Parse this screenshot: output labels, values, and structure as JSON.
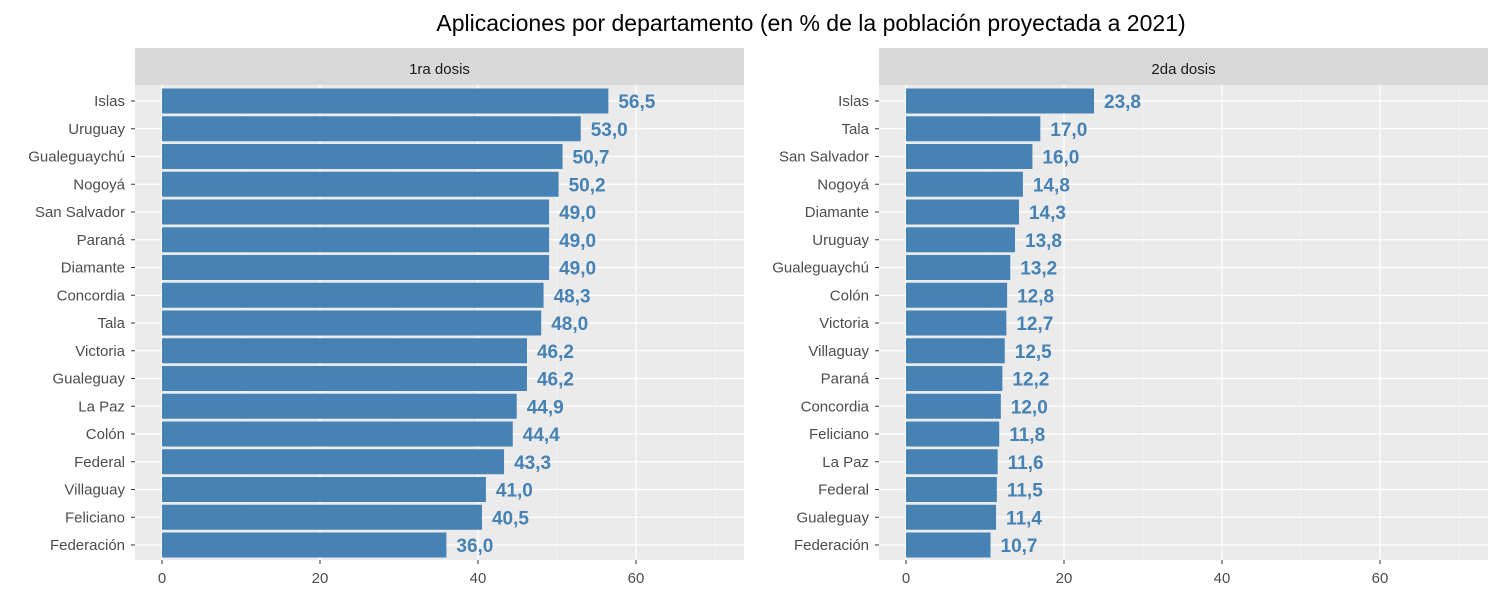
{
  "chart_data": {
    "type": "bar",
    "orientation": "horizontal",
    "title": "Aplicaciones por departamento (en % de la población proyectada a 2021)",
    "xlim": [
      0,
      70
    ],
    "xticks": [
      0,
      20,
      40,
      60
    ],
    "grid": true,
    "bar_color": "#4682b4",
    "panel_background": "#ebebeb",
    "strip_background": "#d9d9d9",
    "panels": [
      {
        "strip": "1ra dosis",
        "categories": [
          "Islas",
          "Uruguay",
          "Gualeguaychú",
          "Nogoyá",
          "San Salvador",
          "Paraná",
          "Diamante",
          "Concordia",
          "Tala",
          "Victoria",
          "Gualeguay",
          "La Paz",
          "Colón",
          "Federal",
          "Villaguay",
          "Feliciano",
          "Federación"
        ],
        "values": [
          56.5,
          53.0,
          50.7,
          50.2,
          49.0,
          49.0,
          49.0,
          48.3,
          48.0,
          46.2,
          46.2,
          44.9,
          44.4,
          43.3,
          41.0,
          40.5,
          36.0
        ],
        "labels": [
          "56,5",
          "53,0",
          "50,7",
          "50,2",
          "49,0",
          "49,0",
          "49,0",
          "48,3",
          "48,0",
          "46,2",
          "46,2",
          "44,9",
          "44,4",
          "43,3",
          "41,0",
          "40,5",
          "36,0"
        ]
      },
      {
        "strip": "2da dosis",
        "categories": [
          "Islas",
          "Tala",
          "San Salvador",
          "Nogoyá",
          "Diamante",
          "Uruguay",
          "Gualeguaychú",
          "Colón",
          "Victoria",
          "Villaguay",
          "Paraná",
          "Concordia",
          "Feliciano",
          "La Paz",
          "Federal",
          "Gualeguay",
          "Federación"
        ],
        "values": [
          23.8,
          17.0,
          16.0,
          14.8,
          14.3,
          13.8,
          13.2,
          12.8,
          12.7,
          12.5,
          12.2,
          12.0,
          11.8,
          11.6,
          11.5,
          11.4,
          10.7
        ],
        "labels": [
          "23,8",
          "17,0",
          "16,0",
          "14,8",
          "14,3",
          "13,8",
          "13,2",
          "12,8",
          "12,7",
          "12,5",
          "12,2",
          "12,0",
          "11,8",
          "11,6",
          "11,5",
          "11,4",
          "10,7"
        ]
      }
    ]
  }
}
